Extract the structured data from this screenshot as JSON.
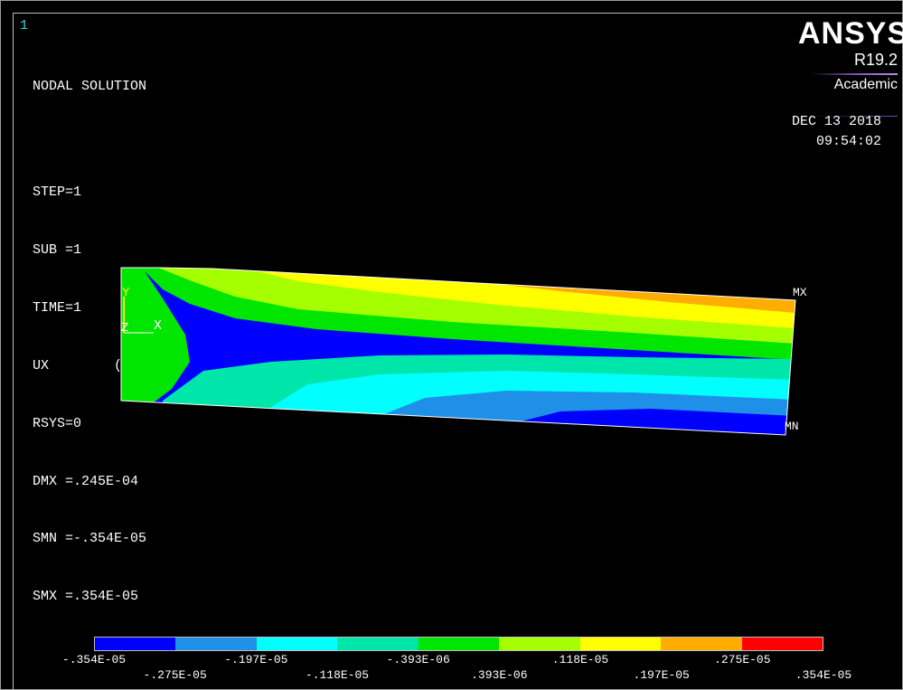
{
  "window_number": "1",
  "solution": {
    "title": "NODAL SOLUTION",
    "lines": [
      "STEP=1",
      "SUB =1",
      "TIME=1",
      "UX        (AVG)",
      "RSYS=0",
      "DMX =.245E-04",
      "SMN =-.354E-05",
      "SMX =.354E-05"
    ]
  },
  "brand": {
    "name": "ANSYS",
    "version": "R19.2",
    "edition": "Academic"
  },
  "timestamp": {
    "date": "DEC 13 2018",
    "time": "09:54:02"
  },
  "triad": {
    "y": "Y",
    "z": "Z",
    "x": "X"
  },
  "markers": {
    "max": "MX",
    "min": "MN"
  },
  "legend": {
    "colors": [
      "#0000ff",
      "#1e90e8",
      "#00ffff",
      "#00e6aa",
      "#00e600",
      "#a6ff00",
      "#ffff00",
      "#ffad00",
      "#ff0000"
    ],
    "top_labels": [
      "-.354E-05",
      "-.197E-05",
      "-.393E-06",
      ".118E-05",
      ".275E-05"
    ],
    "bottom_labels": [
      "-.275E-05",
      "-.118E-05",
      ".393E-06",
      ".197E-05",
      ".354E-05"
    ]
  }
}
